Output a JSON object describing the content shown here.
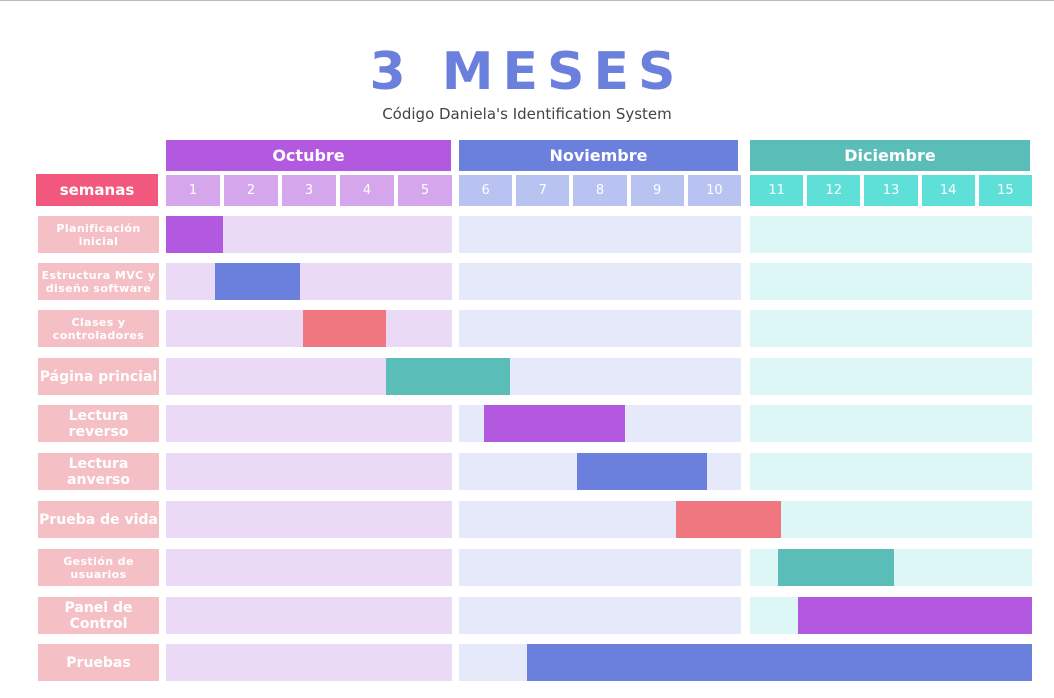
{
  "title": "3 MESES",
  "subtitle": "Código Daniela's Identification System",
  "semanas_label": "semanas",
  "months": [
    {
      "name": "Octubre",
      "weeks": [
        "1",
        "2",
        "3",
        "4",
        "5"
      ],
      "header_color": "#b259e0",
      "week_color": "#d5a6ec",
      "track_color": "#ebdaf6"
    },
    {
      "name": "Noviembre",
      "weeks": [
        "6",
        "7",
        "8",
        "9",
        "10"
      ],
      "header_color": "#6b7fdc",
      "week_color": "#b8c3f2",
      "track_color": "#e5e9f9"
    },
    {
      "name": "Diciembre",
      "weeks": [
        "11",
        "12",
        "13",
        "14",
        "15"
      ],
      "header_color": "#5bbdb8",
      "week_color": "#5ee0d8",
      "track_color": "#ddf6f6"
    }
  ],
  "chart_data": {
    "type": "gantt",
    "x_unit": "semanas",
    "tasks": [
      {
        "label": "Planificación inicial",
        "start": 1.0,
        "end": 2.0,
        "color": "#b259e0"
      },
      {
        "label": "Estructura MVC y diseño  software",
        "start": 1.85,
        "end": 3.35,
        "color": "#6b7fdc"
      },
      {
        "label": "Clases y controladores",
        "start": 3.4,
        "end": 4.85,
        "color": "#f07680"
      },
      {
        "label": "Página princial",
        "start": 4.85,
        "end": 6.9,
        "color": "#5bbdb8"
      },
      {
        "label": "Lectura reverso",
        "start": 6.45,
        "end": 8.95,
        "color": "#b259e0"
      },
      {
        "label": "Lectura anverso",
        "start": 8.1,
        "end": 10.4,
        "color": "#6b7fdc"
      },
      {
        "label": "Prueba de vida",
        "start": 9.85,
        "end": 11.55,
        "color": "#f07680"
      },
      {
        "label": "Gestión de usuarios",
        "start": 11.5,
        "end": 13.55,
        "color": "#5bbdb8"
      },
      {
        "label": "Panel de Control",
        "start": 11.85,
        "end": 16.0,
        "color": "#b259e0"
      },
      {
        "label": "Pruebas",
        "start": 7.2,
        "end": 16.0,
        "color": "#6b7fdc"
      }
    ]
  }
}
